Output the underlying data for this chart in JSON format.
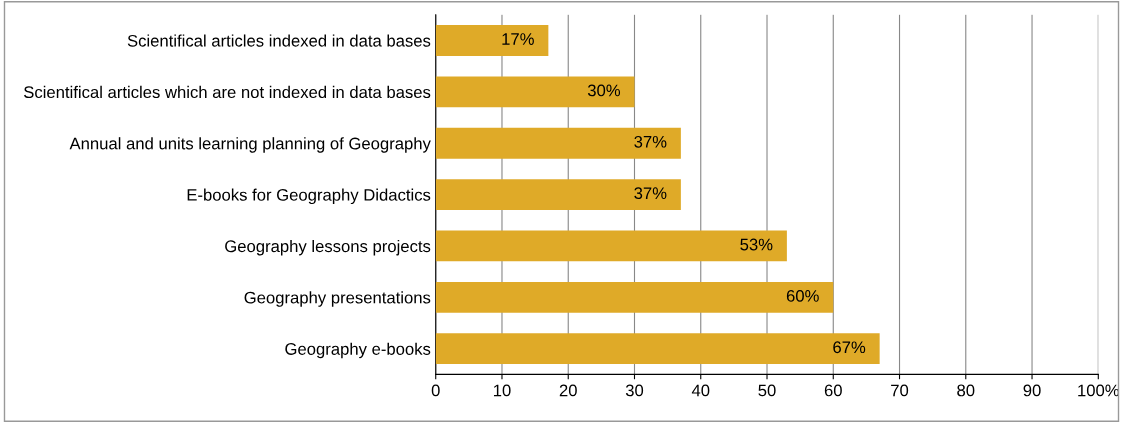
{
  "chart_data": {
    "type": "bar",
    "orientation": "horizontal",
    "categories": [
      "Scientifical articles indexed in data bases",
      "Scientifical articles which are not indexed in data bases",
      "Annual and units learning planning of Geography",
      "E-books for Geography Didactics",
      "Geography lessons projects",
      "Geography presentations",
      "Geography e-books"
    ],
    "values": [
      17,
      30,
      37,
      37,
      53,
      60,
      67
    ],
    "value_labels": [
      "17%",
      "30%",
      "37%",
      "37%",
      "53%",
      "60%",
      "67%"
    ],
    "color": "#dfaa28",
    "xlim": [
      0,
      100
    ],
    "xticks": [
      0,
      10,
      20,
      30,
      40,
      50,
      60,
      70,
      80,
      90,
      {
        "value": 100,
        "label": "100%"
      }
    ],
    "grid": "x",
    "legend": false
  }
}
